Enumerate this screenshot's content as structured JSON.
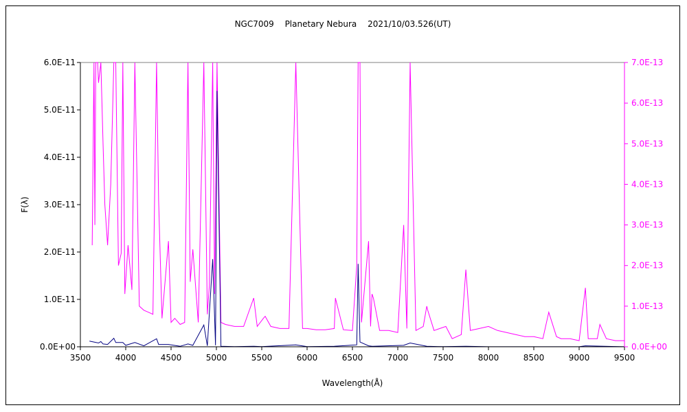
{
  "chart_data": {
    "type": "line",
    "title": "NGC7009　 Planetary Nebura　 2021/10/03.526(UT)",
    "xlabel": "Wavelength(Å)",
    "ylabel": "F(λ)",
    "xlim": [
      3500,
      9500
    ],
    "xticks": [
      "3500",
      "4000",
      "4500",
      "5000",
      "5500",
      "6000",
      "6500",
      "7000",
      "7500",
      "8000",
      "8500",
      "9000",
      "9500"
    ],
    "ylim_left": [
      0,
      6e-11
    ],
    "yticks_left": [
      "0.0E+00",
      "1.0E-11",
      "2.0E-11",
      "3.0E-11",
      "4.0E-11",
      "5.0E-11",
      "6.0E-11"
    ],
    "ylim_right": [
      0,
      7e-13
    ],
    "yticks_right": [
      "0.0E+00",
      "1.0E-13",
      "2.0E-13",
      "3.0E-13",
      "4.0E-13",
      "5.0E-13",
      "6.0E-13",
      "7.0E-13"
    ],
    "grid": false,
    "legend": "none",
    "colors": {
      "left_series": "#000080",
      "right_series": "#ff00ff",
      "right_axis_text": "#ff00ff"
    },
    "series": [
      {
        "axis": "left",
        "x": [
          3600,
          3650,
          3700,
          3726,
          3750,
          3800,
          3869,
          3890,
          3968,
          4000,
          4101,
          4200,
          4340,
          4363,
          4471,
          4600,
          4686,
          4740,
          4861,
          4900,
          4959,
          4990,
          5007,
          5050,
          5200,
          5411,
          5500,
          5876,
          6000,
          6300,
          6548,
          6563,
          6583,
          6678,
          6716,
          6731,
          7065,
          7136,
          7320,
          7500,
          7751,
          8000,
          8500,
          9000,
          9069,
          9500
        ],
        "y": [
          1.2e-12,
          1e-12,
          8e-13,
          1.1e-12,
          6e-13,
          5e-13,
          1.8e-12,
          9e-13,
          9e-13,
          3e-13,
          9e-13,
          2e-13,
          1.7e-12,
          5e-13,
          5e-13,
          1e-13,
          6e-13,
          3e-13,
          4.6e-12,
          2e-13,
          1.85e-11,
          3e-13,
          5.4e-11,
          1e-13,
          5e-14,
          1e-13,
          5e-14,
          4e-13,
          3e-14,
          1e-13,
          4e-13,
          1.75e-11,
          1e-12,
          2e-13,
          1e-13,
          1e-13,
          3e-13,
          8e-13,
          1e-13,
          3e-14,
          1e-13,
          2e-14,
          2e-14,
          2e-14,
          2e-13,
          2e-14
        ]
      },
      {
        "axis": "right",
        "x": [
          3630,
          3650,
          3660,
          3670,
          3690,
          3700,
          3726,
          3750,
          3770,
          3800,
          3835,
          3869,
          3890,
          3920,
          3950,
          3968,
          3990,
          4026,
          4068,
          4101,
          4150,
          4200,
          4250,
          4300,
          4340,
          4363,
          4400,
          4471,
          4500,
          4541,
          4600,
          4650,
          4686,
          4711,
          4740,
          4800,
          4861,
          4900,
          4922,
          4959,
          4980,
          5007,
          5050,
          5100,
          5200,
          5300,
          5411,
          5450,
          5518,
          5538,
          5600,
          5700,
          5800,
          5876,
          5950,
          6000,
          6100,
          6200,
          6300,
          6312,
          6400,
          6500,
          6548,
          6563,
          6583,
          6600,
          6678,
          6700,
          6716,
          6731,
          6800,
          6900,
          7000,
          7065,
          7100,
          7136,
          7200,
          7281,
          7320,
          7330,
          7400,
          7530,
          7600,
          7700,
          7751,
          7800,
          7900,
          8000,
          8100,
          8200,
          8300,
          8400,
          8500,
          8600,
          8665,
          8750,
          8800,
          8900,
          9000,
          9069,
          9100,
          9200,
          9229,
          9300,
          9400,
          9500
        ],
        "y": [
          2.5e-13,
          7e-13,
          3e-13,
          7e-13,
          7e-13,
          6.5e-13,
          7e-13,
          5e-13,
          3.5e-13,
          2.5e-13,
          4e-13,
          7e-13,
          7e-13,
          2e-13,
          2.3e-13,
          7e-13,
          1.3e-13,
          2.5e-13,
          1.4e-13,
          7e-13,
          1e-13,
          9e-14,
          8.5e-14,
          8e-14,
          7e-13,
          3.6e-13,
          7e-14,
          2.6e-13,
          6e-14,
          7e-14,
          5.5e-14,
          6e-14,
          7e-13,
          1.6e-13,
          2.4e-13,
          6e-14,
          7e-13,
          8e-14,
          1.5e-13,
          7e-13,
          1.3e-13,
          7e-13,
          6e-14,
          5.5e-14,
          5e-14,
          5e-14,
          1.2e-13,
          5e-14,
          7e-14,
          7.5e-14,
          5e-14,
          4.5e-14,
          4.5e-14,
          7e-13,
          4.5e-14,
          4.5e-14,
          4.2e-14,
          4.2e-14,
          4.5e-14,
          1.2e-13,
          4.2e-14,
          4e-14,
          2e-13,
          7e-13,
          7e-13,
          6e-14,
          2.6e-13,
          5e-14,
          1.3e-13,
          1.2e-13,
          4e-14,
          4e-14,
          3.5e-14,
          3e-13,
          4.5e-14,
          7e-13,
          4e-14,
          5e-14,
          1e-13,
          9e-14,
          4e-14,
          5e-14,
          2e-14,
          3e-14,
          1.9e-13,
          4e-14,
          4.5e-14,
          5e-14,
          4e-14,
          3.5e-14,
          3e-14,
          2.5e-14,
          2.5e-14,
          2e-14,
          8.5e-14,
          2.5e-14,
          2e-14,
          2e-14,
          1.5e-14,
          1.45e-13,
          2e-14,
          2e-14,
          5.5e-14,
          2e-14,
          1.5e-14,
          1.5e-14
        ]
      }
    ]
  }
}
